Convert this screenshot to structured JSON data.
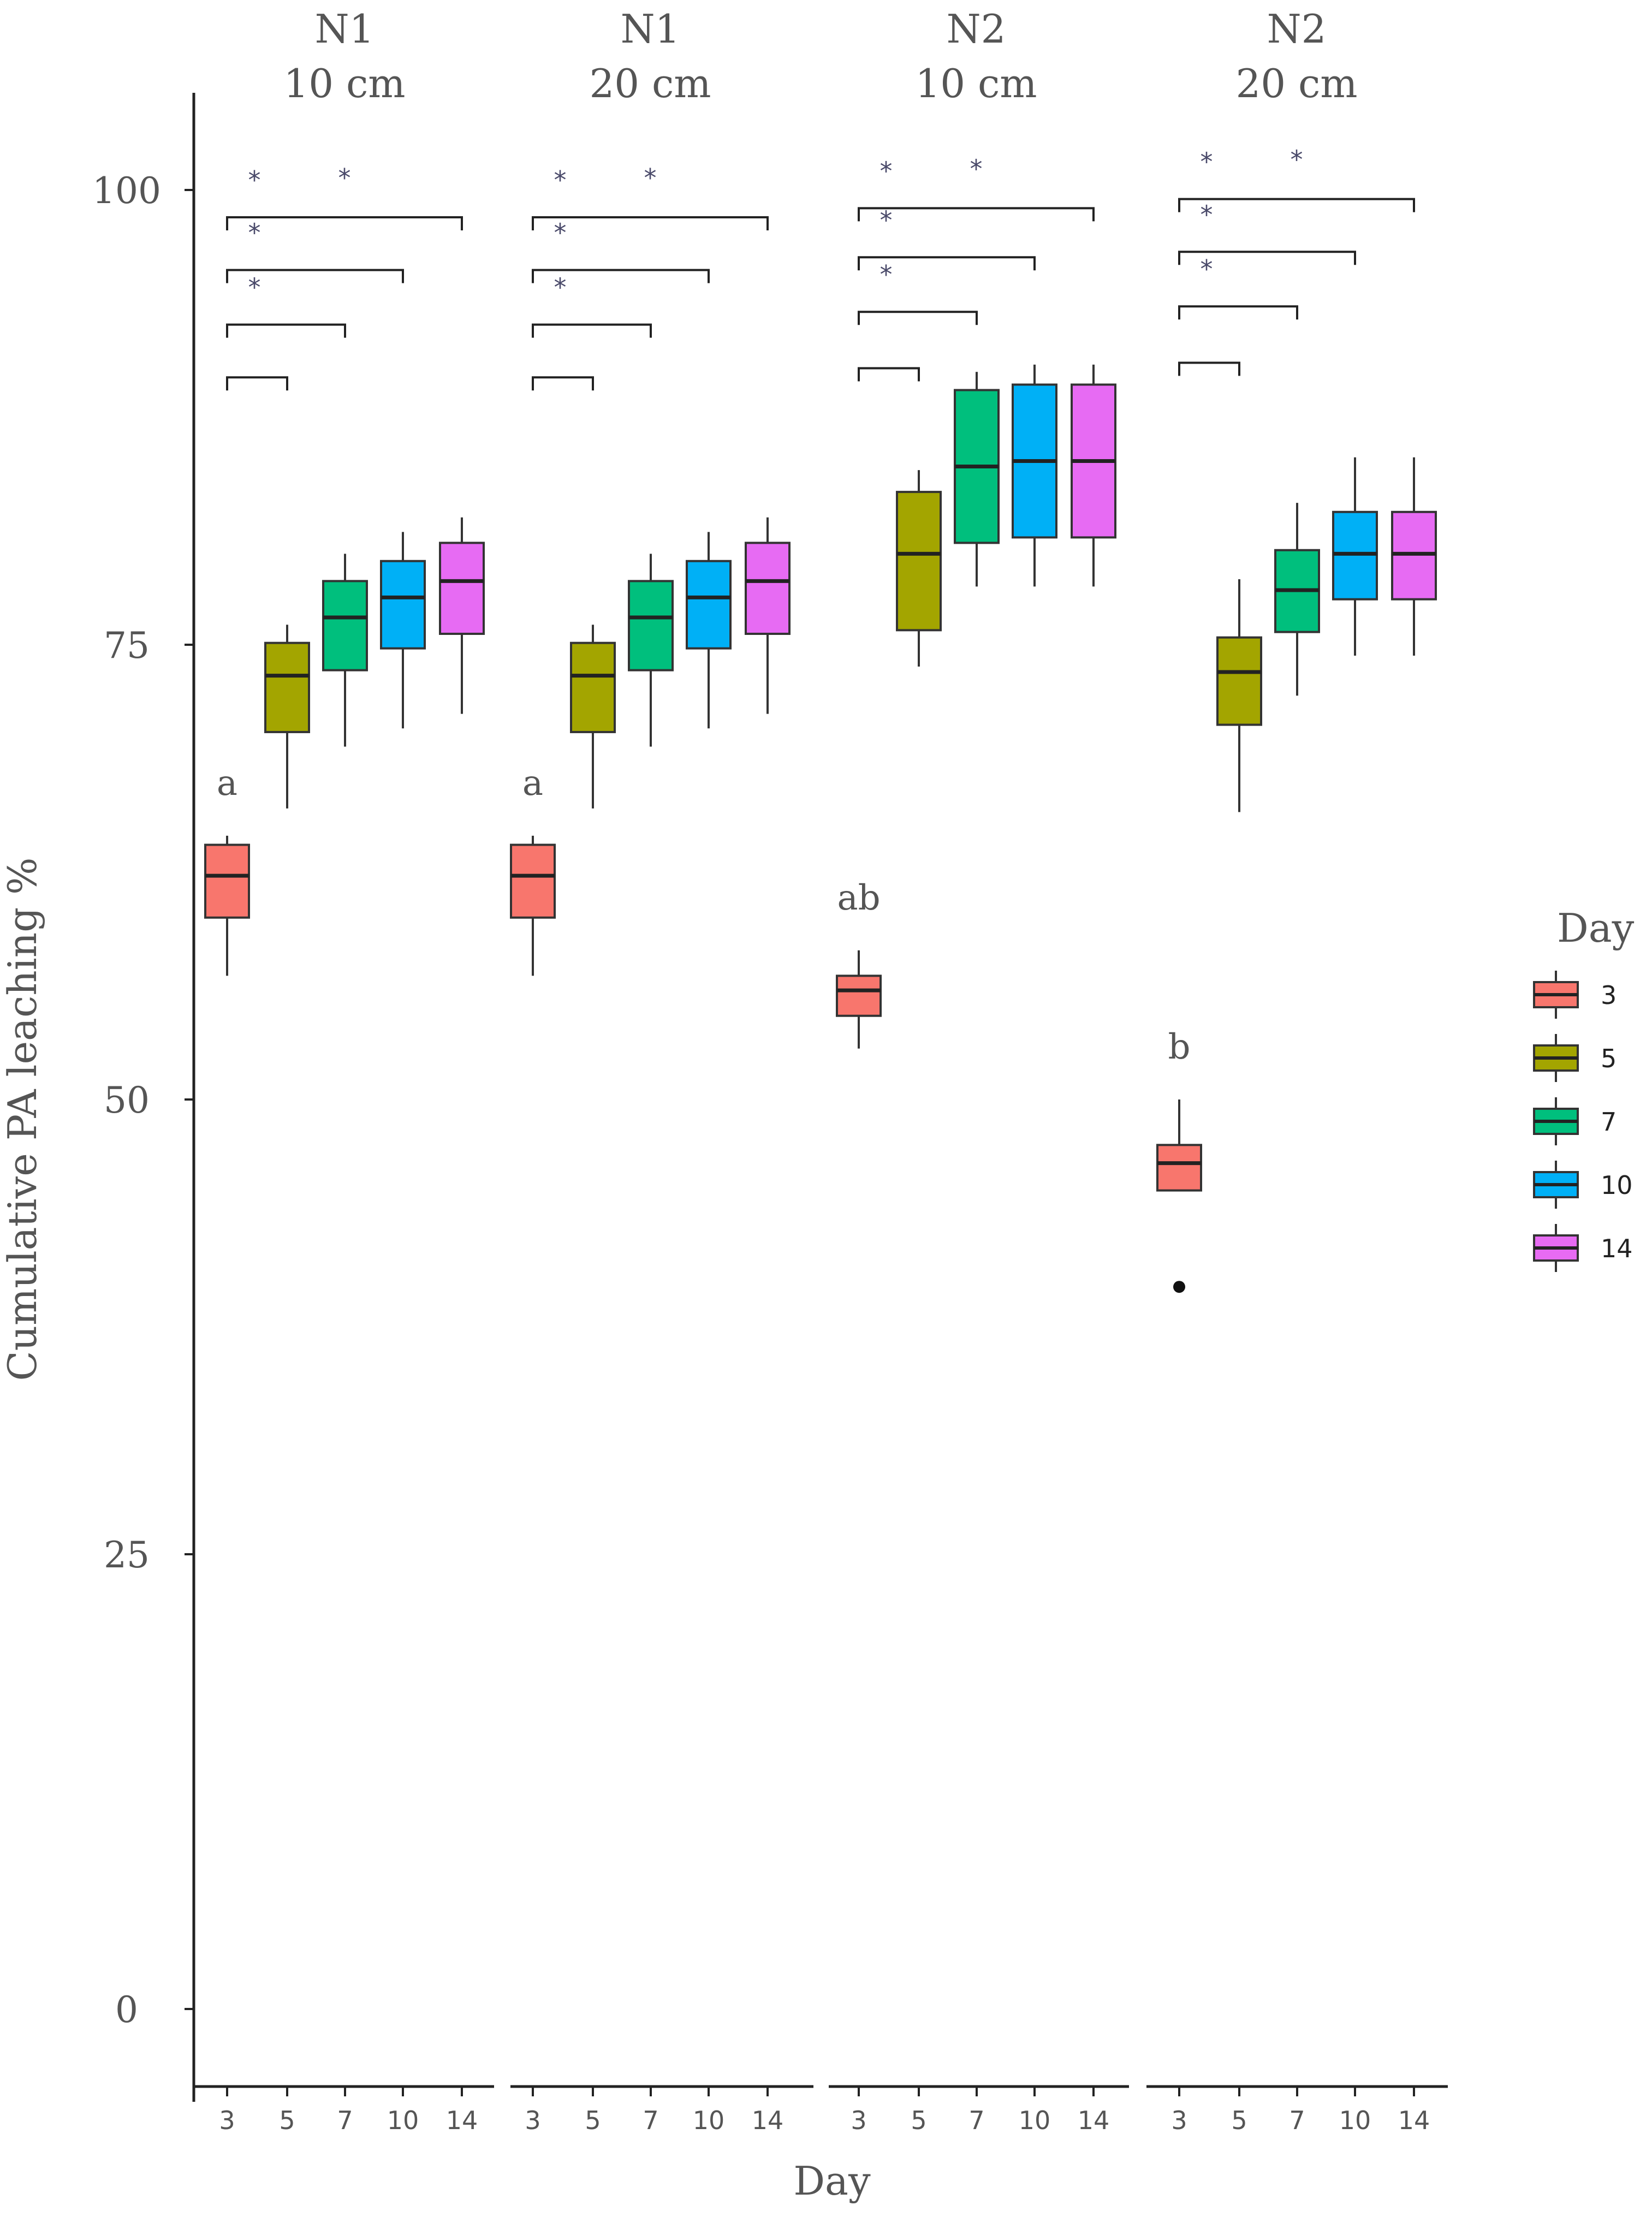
{
  "chart_data": {
    "type": "boxplot",
    "ylabel": "Cumulative  PA leaching %",
    "xlabel": "Day",
    "ylim": [
      -5,
      105
    ],
    "yticks": [
      0,
      25,
      50,
      75,
      100
    ],
    "ytick_labels": [
      "0",
      "25",
      "50",
      "75",
      "100"
    ],
    "categories": [
      "3",
      "5",
      "7",
      "10",
      "14"
    ],
    "legend": {
      "title": "Day",
      "position": "right",
      "entries": [
        {
          "label": "3",
          "color": "#F8766D"
        },
        {
          "label": "5",
          "color": "#A3A500"
        },
        {
          "label": "7",
          "color": "#00BF7D"
        },
        {
          "label": "10",
          "color": "#00B0F6"
        },
        {
          "label": "14",
          "color": "#E76BF3"
        }
      ]
    },
    "panels": [
      {
        "title_line1": "N1",
        "title_line2": "10 cm",
        "boxes": [
          {
            "day": "3",
            "min": 56.8,
            "q1": 60.0,
            "median": 62.3,
            "q3": 64.0,
            "max": 64.5,
            "outliers": []
          },
          {
            "day": "5",
            "min": 66.0,
            "q1": 70.2,
            "median": 73.3,
            "q3": 75.1,
            "max": 76.1,
            "outliers": []
          },
          {
            "day": "7",
            "min": 69.4,
            "q1": 73.6,
            "median": 76.5,
            "q3": 78.5,
            "max": 80.0,
            "outliers": []
          },
          {
            "day": "10",
            "min": 70.4,
            "q1": 74.8,
            "median": 77.6,
            "q3": 79.6,
            "max": 81.2,
            "outliers": []
          },
          {
            "day": "14",
            "min": 71.2,
            "q1": 75.6,
            "median": 78.5,
            "q3": 80.6,
            "max": 82.0,
            "outliers": []
          }
        ],
        "group_label": "a",
        "brackets": [
          {
            "from": "3",
            "to": "5",
            "y": 89.7,
            "label": ""
          },
          {
            "from": "3",
            "to": "7",
            "y": 92.6,
            "label": "*"
          },
          {
            "from": "3",
            "to": "10",
            "y": 95.6,
            "label": "*"
          },
          {
            "from": "3",
            "to": "14",
            "y": 98.5,
            "label": "*"
          }
        ],
        "top_star": "*"
      },
      {
        "title_line1": "N1",
        "title_line2": "20 cm",
        "boxes": [
          {
            "day": "3",
            "min": 56.8,
            "q1": 60.0,
            "median": 62.3,
            "q3": 64.0,
            "max": 64.5,
            "outliers": []
          },
          {
            "day": "5",
            "min": 66.0,
            "q1": 70.2,
            "median": 73.3,
            "q3": 75.1,
            "max": 76.1,
            "outliers": []
          },
          {
            "day": "7",
            "min": 69.4,
            "q1": 73.6,
            "median": 76.5,
            "q3": 78.5,
            "max": 80.0,
            "outliers": []
          },
          {
            "day": "10",
            "min": 70.4,
            "q1": 74.8,
            "median": 77.6,
            "q3": 79.6,
            "max": 81.2,
            "outliers": []
          },
          {
            "day": "14",
            "min": 71.2,
            "q1": 75.6,
            "median": 78.5,
            "q3": 80.6,
            "max": 82.0,
            "outliers": []
          }
        ],
        "group_label": "a",
        "brackets": [
          {
            "from": "3",
            "to": "5",
            "y": 89.7,
            "label": ""
          },
          {
            "from": "3",
            "to": "7",
            "y": 92.6,
            "label": "*"
          },
          {
            "from": "3",
            "to": "10",
            "y": 95.6,
            "label": "*"
          },
          {
            "from": "3",
            "to": "14",
            "y": 98.5,
            "label": "*"
          }
        ],
        "top_star": "*"
      },
      {
        "title_line1": "N2",
        "title_line2": "10 cm",
        "boxes": [
          {
            "day": "3",
            "min": 52.8,
            "q1": 54.6,
            "median": 56.0,
            "q3": 56.8,
            "max": 58.2,
            "outliers": []
          },
          {
            "day": "5",
            "min": 73.8,
            "q1": 75.8,
            "median": 80.0,
            "q3": 83.4,
            "max": 84.6,
            "outliers": []
          },
          {
            "day": "7",
            "min": 78.2,
            "q1": 80.6,
            "median": 84.8,
            "q3": 89.0,
            "max": 90.0,
            "outliers": []
          },
          {
            "day": "10",
            "min": 78.2,
            "q1": 80.9,
            "median": 85.1,
            "q3": 89.3,
            "max": 90.4,
            "outliers": []
          },
          {
            "day": "14",
            "min": 78.2,
            "q1": 80.9,
            "median": 85.1,
            "q3": 89.3,
            "max": 90.4,
            "outliers": []
          }
        ],
        "group_label": "ab",
        "brackets": [
          {
            "from": "3",
            "to": "5",
            "y": 90.2,
            "label": ""
          },
          {
            "from": "3",
            "to": "7",
            "y": 93.3,
            "label": "*"
          },
          {
            "from": "3",
            "to": "10",
            "y": 96.3,
            "label": "*"
          },
          {
            "from": "3",
            "to": "14",
            "y": 99.0,
            "label": "*"
          }
        ],
        "top_star": "*"
      },
      {
        "title_line1": "N2",
        "title_line2": "20 cm",
        "boxes": [
          {
            "day": "3",
            "min": 45.0,
            "q1": 45.0,
            "median": 46.5,
            "q3": 47.5,
            "max": 50.0,
            "outliers": [
              39.7
            ]
          },
          {
            "day": "5",
            "min": 65.8,
            "q1": 70.6,
            "median": 73.5,
            "q3": 75.4,
            "max": 78.6,
            "outliers": []
          },
          {
            "day": "7",
            "min": 72.2,
            "q1": 75.7,
            "median": 78.0,
            "q3": 80.2,
            "max": 82.8,
            "outliers": []
          },
          {
            "day": "10",
            "min": 74.4,
            "q1": 77.5,
            "median": 80.0,
            "q3": 82.3,
            "max": 85.3,
            "outliers": []
          },
          {
            "day": "14",
            "min": 74.4,
            "q1": 77.5,
            "median": 80.0,
            "q3": 82.3,
            "max": 85.3,
            "outliers": []
          }
        ],
        "group_label": "b",
        "brackets": [
          {
            "from": "3",
            "to": "5",
            "y": 90.5,
            "label": ""
          },
          {
            "from": "3",
            "to": "7",
            "y": 93.6,
            "label": "*"
          },
          {
            "from": "3",
            "to": "10",
            "y": 96.6,
            "label": "*"
          },
          {
            "from": "3",
            "to": "14",
            "y": 99.5,
            "label": "*"
          }
        ],
        "top_star": "*"
      }
    ]
  }
}
